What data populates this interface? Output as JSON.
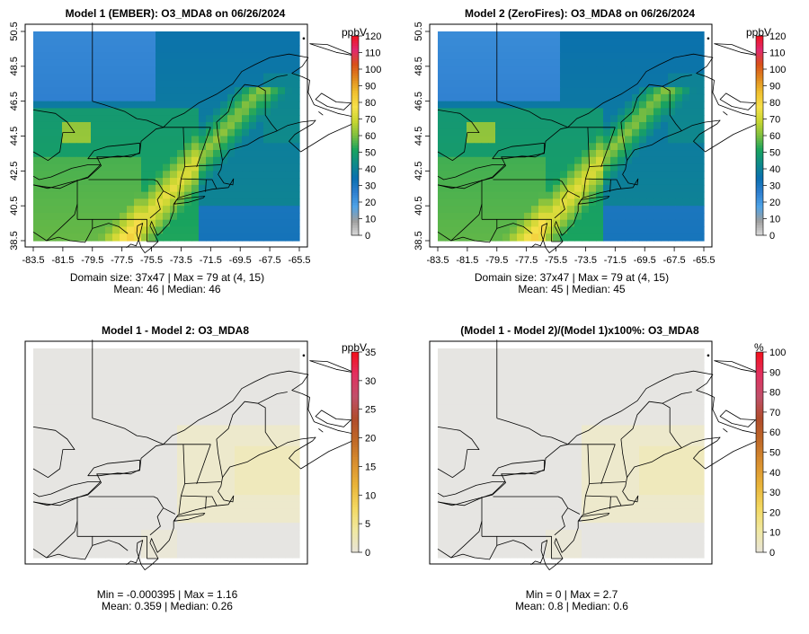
{
  "colorbars": {
    "abs": {
      "stops": [
        "#d9d9d9",
        "#9e9e9e",
        "#4fa3e6",
        "#2e7fcf",
        "#0b6fb0",
        "#0f8a8a",
        "#19a35e",
        "#7fbf3f",
        "#c8d630",
        "#f6e04a",
        "#f0c130",
        "#e08a20",
        "#d8501a",
        "#e02a70",
        "#f0141e"
      ]
    },
    "diff": {
      "stops": [
        "#e8e4d8",
        "#f0e8a0",
        "#f3d860",
        "#e9b43a",
        "#d99030",
        "#c06a28",
        "#b04c2c",
        "#c0506a",
        "#e23060",
        "#f2101a"
      ]
    }
  },
  "panels": [
    {
      "title": "Model 1 (EMBER): O3_MDA8 on 06/26/2024",
      "unit": "ppbV",
      "type": "abs",
      "colorbar_ticks": [
        "0",
        "10",
        "20",
        "30",
        "40",
        "50",
        "60",
        "70",
        "80",
        "90",
        "100",
        "110",
        "120"
      ],
      "x_ticks": [
        "-83.5",
        "-81.5",
        "-79.5",
        "-77.5",
        "-75.5",
        "-73.5",
        "-71.5",
        "-69.5",
        "-67.5",
        "-65.5"
      ],
      "y_ticks": [
        "38.5",
        "40.5",
        "42.5",
        "44.5",
        "46.5",
        "48.5",
        "50.5"
      ],
      "stats_line1": "Domain size: 37x47 | Max = 79 at (4, 15)",
      "stats_line2": "Mean: 46 |  Median: 46"
    },
    {
      "title": "Model 2 (ZeroFires): O3_MDA8 on 06/26/2024",
      "unit": "ppbV",
      "type": "abs",
      "colorbar_ticks": [
        "0",
        "10",
        "20",
        "30",
        "40",
        "50",
        "60",
        "70",
        "80",
        "90",
        "100",
        "110",
        "120"
      ],
      "x_ticks": [
        "-83.5",
        "-81.5",
        "-79.5",
        "-77.5",
        "-75.5",
        "-73.5",
        "-71.5",
        "-69.5",
        "-67.5",
        "-65.5"
      ],
      "y_ticks": [
        "38.5",
        "40.5",
        "42.5",
        "44.5",
        "46.5",
        "48.5",
        "50.5"
      ],
      "stats_line1": "Domain size: 37x47 | Max = 79 at (4, 15)",
      "stats_line2": "Mean: 45 |  Median: 45"
    },
    {
      "title": "Model 1 - Model 2: O3_MDA8",
      "unit": "ppbV",
      "type": "diff",
      "colorbar_ticks": [
        "0",
        "5",
        "10",
        "15",
        "20",
        "25",
        "30",
        "35"
      ],
      "x_ticks": [],
      "y_ticks": [],
      "stats_line1": "Min = -0.000395 | Max = 1.16",
      "stats_line2": "Mean: 0.359 |  Median: 0.26"
    },
    {
      "title": "(Model 1 - Model 2)/(Model 1)x100%: O3_MDA8",
      "unit": "%",
      "type": "pct",
      "colorbar_ticks": [
        "0",
        "10",
        "20",
        "30",
        "40",
        "50",
        "60",
        "70",
        "80",
        "90",
        "100"
      ],
      "x_ticks": [],
      "y_ticks": [],
      "stats_line1": "Min = 0 | Max = 2.7",
      "stats_line2": "Mean: 0.8 |  Median: 0.6"
    }
  ],
  "chart_data": [
    {
      "type": "heatmap",
      "title": "Model 1 (EMBER): O3_MDA8 on 06/26/2024",
      "variable": "O3_MDA8",
      "unit": "ppbV",
      "grid": "37x47",
      "xlim": [
        -83.5,
        -65.5
      ],
      "ylim": [
        38.5,
        50.5
      ],
      "color_range": [
        0,
        120
      ],
      "max": 79,
      "max_location": "(4, 15)",
      "mean": 46,
      "median": 46
    },
    {
      "type": "heatmap",
      "title": "Model 2 (ZeroFires): O3_MDA8 on 06/26/2024",
      "variable": "O3_MDA8",
      "unit": "ppbV",
      "grid": "37x47",
      "xlim": [
        -83.5,
        -65.5
      ],
      "ylim": [
        38.5,
        50.5
      ],
      "color_range": [
        0,
        120
      ],
      "max": 79,
      "max_location": "(4, 15)",
      "mean": 45,
      "median": 45
    },
    {
      "type": "heatmap",
      "title": "Model 1 - Model 2: O3_MDA8",
      "unit": "ppbV",
      "color_range": [
        0,
        35
      ],
      "min": -0.000395,
      "max": 1.16,
      "mean": 0.359,
      "median": 0.26
    },
    {
      "type": "heatmap",
      "title": "(Model 1 - Model 2)/(Model 1)x100%: O3_MDA8",
      "unit": "%",
      "color_range": [
        0,
        100
      ],
      "min": 0,
      "max": 2.7,
      "mean": 0.8,
      "median": 0.6
    }
  ]
}
